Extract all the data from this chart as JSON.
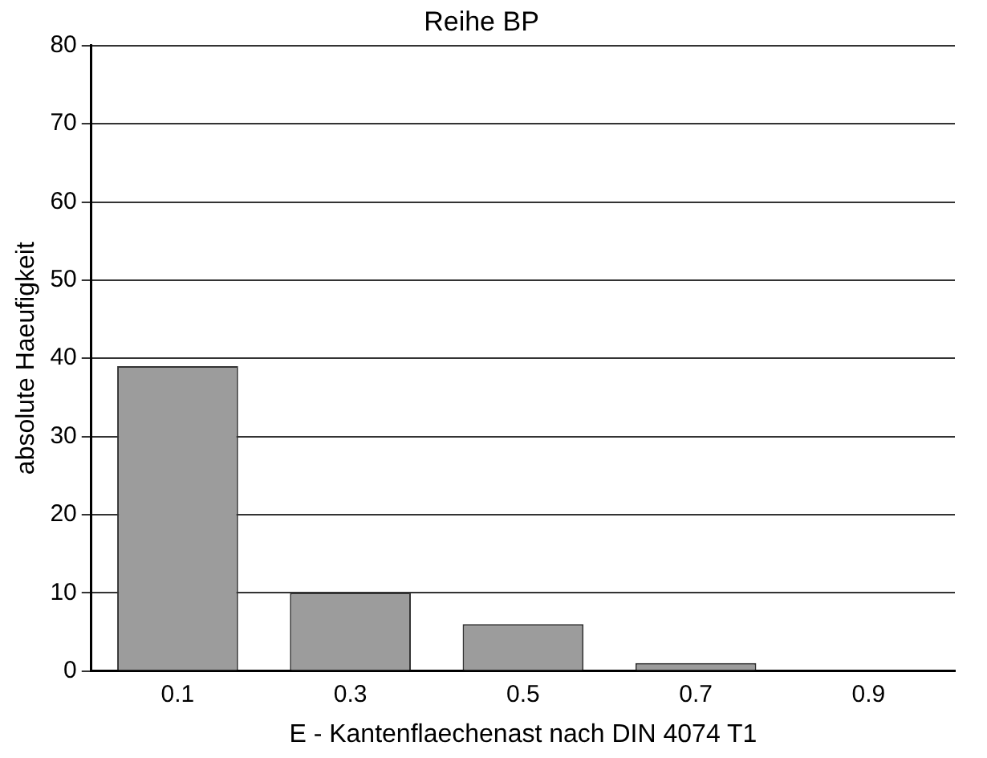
{
  "chart_data": {
    "type": "bar",
    "title": "Reihe BP",
    "xlabel": "E - Kantenflaechenast nach DIN 4074 T1",
    "ylabel": "absolute Haeufigkeit",
    "categories": [
      "0.1",
      "0.3",
      "0.5",
      "0.7",
      "0.9"
    ],
    "values": [
      39,
      10,
      6,
      1,
      0
    ],
    "color": "#9c9c9c",
    "ylim": [
      0,
      80
    ],
    "yticks": [
      0,
      10,
      20,
      30,
      40,
      50,
      60,
      70,
      80
    ],
    "grid": "y",
    "legend": false
  }
}
